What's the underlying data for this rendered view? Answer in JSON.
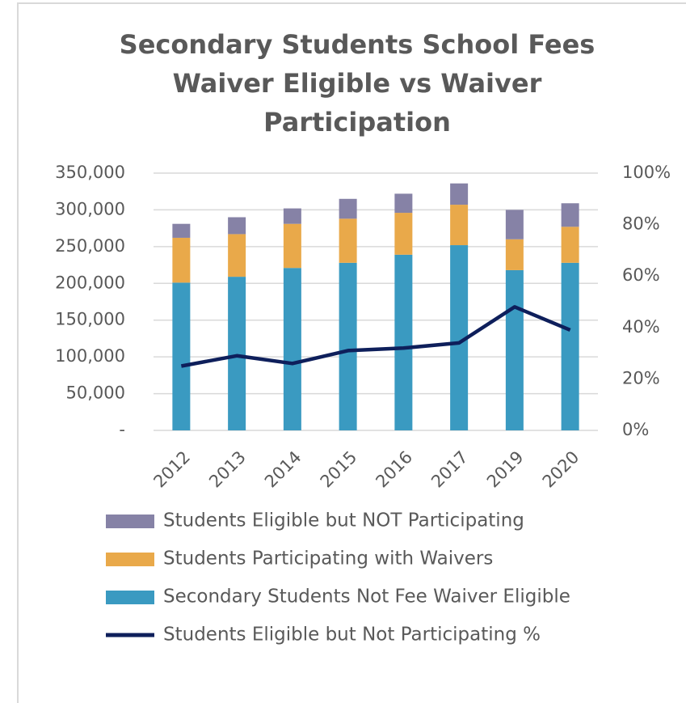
{
  "chart_data": {
    "type": "bar",
    "title_lines": [
      "Secondary Students School Fees",
      "Waiver Eligible vs Waiver",
      "Participation"
    ],
    "categories": [
      "2012",
      "2013",
      "2014",
      "2015",
      "2016",
      "2017",
      "2019",
      "2020"
    ],
    "stacked": true,
    "series": [
      {
        "name": "Secondary Students Not Fee Waiver Eligible",
        "color": "#3a9ac1",
        "axis": "y",
        "values": [
          201000,
          209000,
          221000,
          228000,
          239000,
          252000,
          218000,
          228000
        ]
      },
      {
        "name": "Students Participating with Waivers",
        "color": "#e9a94a",
        "axis": "y",
        "values": [
          61000,
          58000,
          60000,
          60000,
          57000,
          55000,
          42000,
          49000
        ]
      },
      {
        "name": "Students Eligible but NOT Participating",
        "color": "#8682a6",
        "axis": "y",
        "values": [
          19000,
          23000,
          21000,
          27000,
          26000,
          29000,
          40000,
          32000
        ]
      },
      {
        "name": "Students Eligible but Not Participating %",
        "color": "#0e1f5b",
        "axis": "y2",
        "type": "line",
        "values": [
          25,
          29,
          26,
          31,
          32,
          34,
          48,
          39
        ]
      }
    ],
    "ylim": [
      0,
      350000
    ],
    "yticks": [
      {
        "value": 0,
        "label": "-"
      },
      {
        "value": 50000,
        "label": "50,000"
      },
      {
        "value": 100000,
        "label": "100,000"
      },
      {
        "value": 150000,
        "label": "150,000"
      },
      {
        "value": 200000,
        "label": "200,000"
      },
      {
        "value": 250000,
        "label": "250,000"
      },
      {
        "value": 300000,
        "label": "300,000"
      },
      {
        "value": 350000,
        "label": "350,000"
      }
    ],
    "y2lim": [
      0,
      100
    ],
    "y2ticks": [
      {
        "value": 0,
        "label": "0%"
      },
      {
        "value": 20,
        "label": "20%"
      },
      {
        "value": 40,
        "label": "40%"
      },
      {
        "value": 60,
        "label": "60%"
      },
      {
        "value": 80,
        "label": "80%"
      },
      {
        "value": 100,
        "label": "100%"
      }
    ],
    "grid": true,
    "legend": "bottom"
  }
}
